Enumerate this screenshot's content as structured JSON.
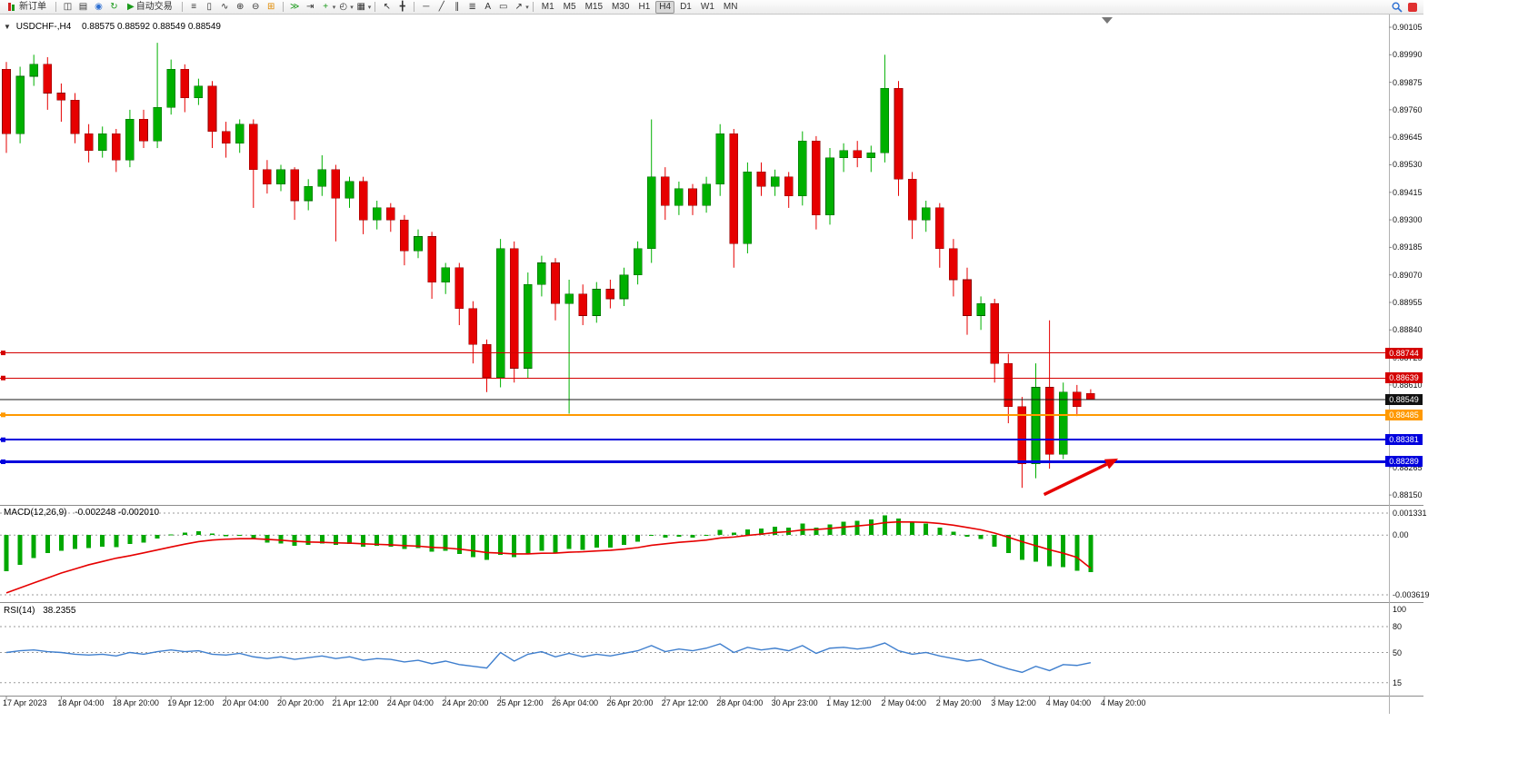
{
  "toolbar": {
    "new_order_label": "新订单",
    "auto_trading_label": "自动交易",
    "text_tool_label": "A",
    "timeframes": [
      "M1",
      "M5",
      "M15",
      "M30",
      "H1",
      "H4",
      "D1",
      "W1",
      "MN"
    ],
    "active_timeframe": "H4"
  },
  "icons": {
    "one_click": "▼",
    "dropdown": "▾",
    "chart_window": "◫",
    "chart_list": "▤",
    "profile": "◉",
    "refresh": "↻",
    "play": "▶",
    "bars_chart": "≡",
    "candles_chart": "▯",
    "line_chart": "∿",
    "zoom_in": "⊕",
    "zoom_out": "⊖",
    "tile_windows": "⊞",
    "auto_scroll": "≫",
    "chart_shift": "⇥",
    "indicators": "+",
    "periods": "◴",
    "templates": "▦",
    "cursor": "↖",
    "crosshair": "╋",
    "horizontal_line": "─",
    "trend_line": "╱",
    "channel": "∥",
    "fibonacci": "≣",
    "text_label": "▭",
    "arrow_tool": "↗"
  },
  "chart_data": {
    "type": "candlestick",
    "symbol_label": "USDCHF-,H4",
    "ohlc_label": "0.88575 0.88592 0.88549 0.88549",
    "up_color": "#00b000",
    "down_color": "#e60000",
    "price_axis": [
      "0.90105",
      "0.89990",
      "0.89875",
      "0.89760",
      "0.89645",
      "0.89530",
      "0.89415",
      "0.89300",
      "0.89185",
      "0.89070",
      "0.88955",
      "0.88840",
      "0.88725",
      "0.88610",
      "0.88495",
      "0.88380",
      "0.88265",
      "0.88150"
    ],
    "time_axis": [
      "17 Apr 2023",
      "18 Apr 04:00",
      "18 Apr 20:00",
      "19 Apr 12:00",
      "20 Apr 04:00",
      "20 Apr 20:00",
      "21 Apr 12:00",
      "24 Apr 04:00",
      "24 Apr 20:00",
      "25 Apr 12:00",
      "26 Apr 04:00",
      "26 Apr 20:00",
      "27 Apr 12:00",
      "28 Apr 04:00",
      "30 Apr 23:00",
      "1 May 12:00",
      "2 May 04:00",
      "2 May 20:00",
      "3 May 12:00",
      "4 May 04:00",
      "4 May 20:00"
    ],
    "candles": [
      [
        0.8993,
        0.8996,
        0.8958,
        0.8966
      ],
      [
        0.8966,
        0.8994,
        0.8962,
        0.899
      ],
      [
        0.899,
        0.8999,
        0.8986,
        0.8995
      ],
      [
        0.8995,
        0.8998,
        0.8976,
        0.8983
      ],
      [
        0.8983,
        0.8987,
        0.8971,
        0.898
      ],
      [
        0.898,
        0.8983,
        0.8962,
        0.8966
      ],
      [
        0.8966,
        0.897,
        0.8954,
        0.8959
      ],
      [
        0.8959,
        0.8969,
        0.8956,
        0.8966
      ],
      [
        0.8966,
        0.8968,
        0.895,
        0.8955
      ],
      [
        0.8955,
        0.8976,
        0.8952,
        0.8972
      ],
      [
        0.8972,
        0.8976,
        0.896,
        0.8963
      ],
      [
        0.8963,
        0.9004,
        0.896,
        0.8977
      ],
      [
        0.8977,
        0.8997,
        0.8974,
        0.8993
      ],
      [
        0.8993,
        0.8995,
        0.8975,
        0.8981
      ],
      [
        0.8981,
        0.8989,
        0.8978,
        0.8986
      ],
      [
        0.8986,
        0.8988,
        0.896,
        0.8967
      ],
      [
        0.8967,
        0.8971,
        0.8956,
        0.8962
      ],
      [
        0.8962,
        0.8972,
        0.8958,
        0.897
      ],
      [
        0.897,
        0.8972,
        0.8935,
        0.8951
      ],
      [
        0.8951,
        0.8955,
        0.8941,
        0.8945
      ],
      [
        0.8945,
        0.8953,
        0.8942,
        0.8951
      ],
      [
        0.8951,
        0.8952,
        0.893,
        0.8938
      ],
      [
        0.8938,
        0.8947,
        0.8934,
        0.8944
      ],
      [
        0.8944,
        0.8957,
        0.894,
        0.8951
      ],
      [
        0.8951,
        0.8953,
        0.8921,
        0.8939
      ],
      [
        0.8939,
        0.8948,
        0.8935,
        0.8946
      ],
      [
        0.8946,
        0.8948,
        0.8924,
        0.893
      ],
      [
        0.893,
        0.8938,
        0.8926,
        0.8935
      ],
      [
        0.8935,
        0.8937,
        0.8925,
        0.893
      ],
      [
        0.893,
        0.8932,
        0.8911,
        0.8917
      ],
      [
        0.8917,
        0.8926,
        0.8914,
        0.8923
      ],
      [
        0.8923,
        0.8925,
        0.8897,
        0.8904
      ],
      [
        0.8904,
        0.8912,
        0.8899,
        0.891
      ],
      [
        0.891,
        0.8912,
        0.8886,
        0.8893
      ],
      [
        0.8893,
        0.8896,
        0.887,
        0.8878
      ],
      [
        0.8878,
        0.888,
        0.8858,
        0.8864
      ],
      [
        0.8864,
        0.8922,
        0.886,
        0.8918
      ],
      [
        0.8918,
        0.8921,
        0.8862,
        0.8868
      ],
      [
        0.8868,
        0.8908,
        0.8864,
        0.8903
      ],
      [
        0.8903,
        0.8915,
        0.8898,
        0.8912
      ],
      [
        0.8912,
        0.8914,
        0.8888,
        0.8895
      ],
      [
        0.8895,
        0.8905,
        0.8849,
        0.8899
      ],
      [
        0.8899,
        0.8903,
        0.8886,
        0.889
      ],
      [
        0.889,
        0.8904,
        0.8887,
        0.8901
      ],
      [
        0.8901,
        0.8905,
        0.8893,
        0.8897
      ],
      [
        0.8897,
        0.891,
        0.8894,
        0.8907
      ],
      [
        0.8907,
        0.8921,
        0.8903,
        0.8918
      ],
      [
        0.8918,
        0.8972,
        0.8912,
        0.8948
      ],
      [
        0.8948,
        0.8952,
        0.893,
        0.8936
      ],
      [
        0.8936,
        0.8946,
        0.8932,
        0.8943
      ],
      [
        0.8943,
        0.8945,
        0.8932,
        0.8936
      ],
      [
        0.8936,
        0.8948,
        0.8933,
        0.8945
      ],
      [
        0.8945,
        0.897,
        0.894,
        0.8966
      ],
      [
        0.8966,
        0.8968,
        0.891,
        0.892
      ],
      [
        0.892,
        0.8954,
        0.8916,
        0.895
      ],
      [
        0.895,
        0.8954,
        0.894,
        0.8944
      ],
      [
        0.8944,
        0.8951,
        0.894,
        0.8948
      ],
      [
        0.8948,
        0.895,
        0.8935,
        0.894
      ],
      [
        0.894,
        0.8967,
        0.8936,
        0.8963
      ],
      [
        0.8963,
        0.8965,
        0.8926,
        0.8932
      ],
      [
        0.8932,
        0.896,
        0.8928,
        0.8956
      ],
      [
        0.8956,
        0.8962,
        0.895,
        0.8959
      ],
      [
        0.8959,
        0.8963,
        0.8952,
        0.8956
      ],
      [
        0.8956,
        0.8961,
        0.895,
        0.8958
      ],
      [
        0.8958,
        0.8999,
        0.8954,
        0.8985
      ],
      [
        0.8985,
        0.8988,
        0.894,
        0.8947
      ],
      [
        0.8947,
        0.895,
        0.8922,
        0.893
      ],
      [
        0.893,
        0.8938,
        0.8925,
        0.8935
      ],
      [
        0.8935,
        0.8937,
        0.891,
        0.8918
      ],
      [
        0.8918,
        0.8922,
        0.8898,
        0.8905
      ],
      [
        0.8905,
        0.891,
        0.8882,
        0.889
      ],
      [
        0.889,
        0.8898,
        0.8884,
        0.8895
      ],
      [
        0.8895,
        0.8897,
        0.8862,
        0.887
      ],
      [
        0.887,
        0.8874,
        0.8845,
        0.8852
      ],
      [
        0.8852,
        0.8856,
        0.8818,
        0.8828
      ],
      [
        0.8828,
        0.887,
        0.8822,
        0.886
      ],
      [
        0.886,
        0.8888,
        0.8826,
        0.8832
      ],
      [
        0.8832,
        0.8862,
        0.883,
        0.8858
      ],
      [
        0.8858,
        0.8861,
        0.8848,
        0.8852
      ],
      [
        0.88575,
        0.88592,
        0.88549,
        0.88549
      ]
    ],
    "levels": [
      {
        "price": 0.88744,
        "label": "0.88744",
        "color": "#d40000",
        "width": 1,
        "kind": "resistance"
      },
      {
        "price": 0.88639,
        "label": "0.88639",
        "color": "#d40000",
        "width": 1,
        "kind": "resistance"
      },
      {
        "price": 0.88549,
        "label": "0.88549",
        "color": "#1a1a1a",
        "width": 1,
        "kind": "current-price"
      },
      {
        "price": 0.88485,
        "label": "0.88485",
        "color": "#ff9900",
        "width": 2,
        "kind": "support"
      },
      {
        "price": 0.88381,
        "label": "0.88381",
        "color": "#0000dd",
        "width": 2,
        "kind": "support"
      },
      {
        "price": 0.88289,
        "label": "0.88289",
        "color": "#0000dd",
        "width": 3,
        "kind": "support"
      }
    ],
    "arrow": {
      "from_bar": 75.6,
      "from_price": 0.88152,
      "to_bar": 81.0,
      "to_price": 0.88302,
      "color": "#e60000",
      "width": 3.5
    },
    "macd": {
      "name": "MACD(12,26,9)",
      "values_label": "-0.002248 -0.002010",
      "axis": [
        "0.001331",
        "0.00",
        "-0.003619"
      ],
      "hist_color": "#00a800",
      "signal_color": "#e60000",
      "histogram": [
        -0.0022,
        -0.0018,
        -0.0014,
        -0.0011,
        -0.00095,
        -0.00085,
        -0.0008,
        -0.0007,
        -0.00072,
        -0.00055,
        -0.00045,
        -0.0002,
        5e-05,
        0.00015,
        0.00022,
        8e-05,
        -8e-05,
        -5e-05,
        -0.00025,
        -0.00045,
        -0.0005,
        -0.00065,
        -0.0006,
        -0.0005,
        -0.0006,
        -0.00055,
        -0.0007,
        -0.00065,
        -0.0007,
        -0.00085,
        -0.0008,
        -0.001,
        -0.00095,
        -0.00115,
        -0.00135,
        -0.0015,
        -0.0012,
        -0.00135,
        -0.00115,
        -0.00095,
        -0.00105,
        -0.00085,
        -0.0009,
        -0.00075,
        -0.00075,
        -0.0006,
        -0.0004,
        -5e-05,
        -0.00015,
        -0.0001,
        -0.00015,
        0,
        0.0003,
        0.00015,
        0.00035,
        0.0004,
        0.0005,
        0.00045,
        0.0007,
        0.00045,
        0.00065,
        0.0008,
        0.00085,
        0.00095,
        0.0012,
        0.001,
        0.00075,
        0.0007,
        0.00045,
        0.0002,
        -0.0001,
        -0.00025,
        -0.0007,
        -0.0011,
        -0.0015,
        -0.0016,
        -0.0019,
        -0.00195,
        -0.00215,
        -0.002248
      ],
      "signal": [
        -0.0035,
        -0.0032,
        -0.0029,
        -0.0026,
        -0.0023,
        -0.00205,
        -0.0018,
        -0.0016,
        -0.0014,
        -0.00125,
        -0.00108,
        -0.0009,
        -0.00072,
        -0.00055,
        -0.0004,
        -0.0003,
        -0.00025,
        -0.00022,
        -0.00022,
        -0.00026,
        -0.00031,
        -0.00038,
        -0.00042,
        -0.00044,
        -0.00047,
        -0.00049,
        -0.00053,
        -0.00056,
        -0.00059,
        -0.00064,
        -0.00067,
        -0.00074,
        -0.00078,
        -0.00085,
        -0.00095,
        -0.00106,
        -0.00109,
        -0.00114,
        -0.00114,
        -0.0011,
        -0.00109,
        -0.00104,
        -0.00101,
        -0.00096,
        -0.00092,
        -0.00085,
        -0.00076,
        -0.00062,
        -0.00053,
        -0.00044,
        -0.00038,
        -0.0003,
        -0.00018,
        -0.00012,
        -2e-05,
        6e-05,
        0.00015,
        0.00021,
        0.00031,
        0.00034,
        0.0004,
        0.00048,
        0.00055,
        0.00063,
        0.00075,
        0.0008,
        0.00079,
        0.00077,
        0.0007,
        0.0006,
        0.00046,
        0.00032,
        0.00012,
        -0.00013,
        -0.0004,
        -0.00064,
        -0.00089,
        -0.0011,
        -0.00135,
        -0.00201
      ]
    },
    "rsi": {
      "name": "RSI(14)",
      "value_label": "38.2355",
      "color": "#3f7fce",
      "levels": [
        "100",
        "80",
        "50",
        "15"
      ],
      "values": [
        50,
        52,
        53,
        51,
        50,
        48,
        47,
        48,
        46,
        50,
        48,
        51,
        53,
        51,
        52,
        48,
        47,
        49,
        45,
        43,
        45,
        42,
        44,
        46,
        43,
        45,
        41,
        43,
        42,
        39,
        41,
        37,
        40,
        36,
        34,
        32,
        50,
        40,
        48,
        51,
        45,
        49,
        45,
        48,
        46,
        49,
        52,
        58,
        51,
        54,
        52,
        55,
        60,
        50,
        56,
        53,
        55,
        52,
        58,
        49,
        55,
        56,
        54,
        56,
        61,
        52,
        48,
        50,
        46,
        43,
        40,
        42,
        36,
        31,
        27,
        34,
        29,
        36,
        35,
        38.24
      ]
    }
  }
}
